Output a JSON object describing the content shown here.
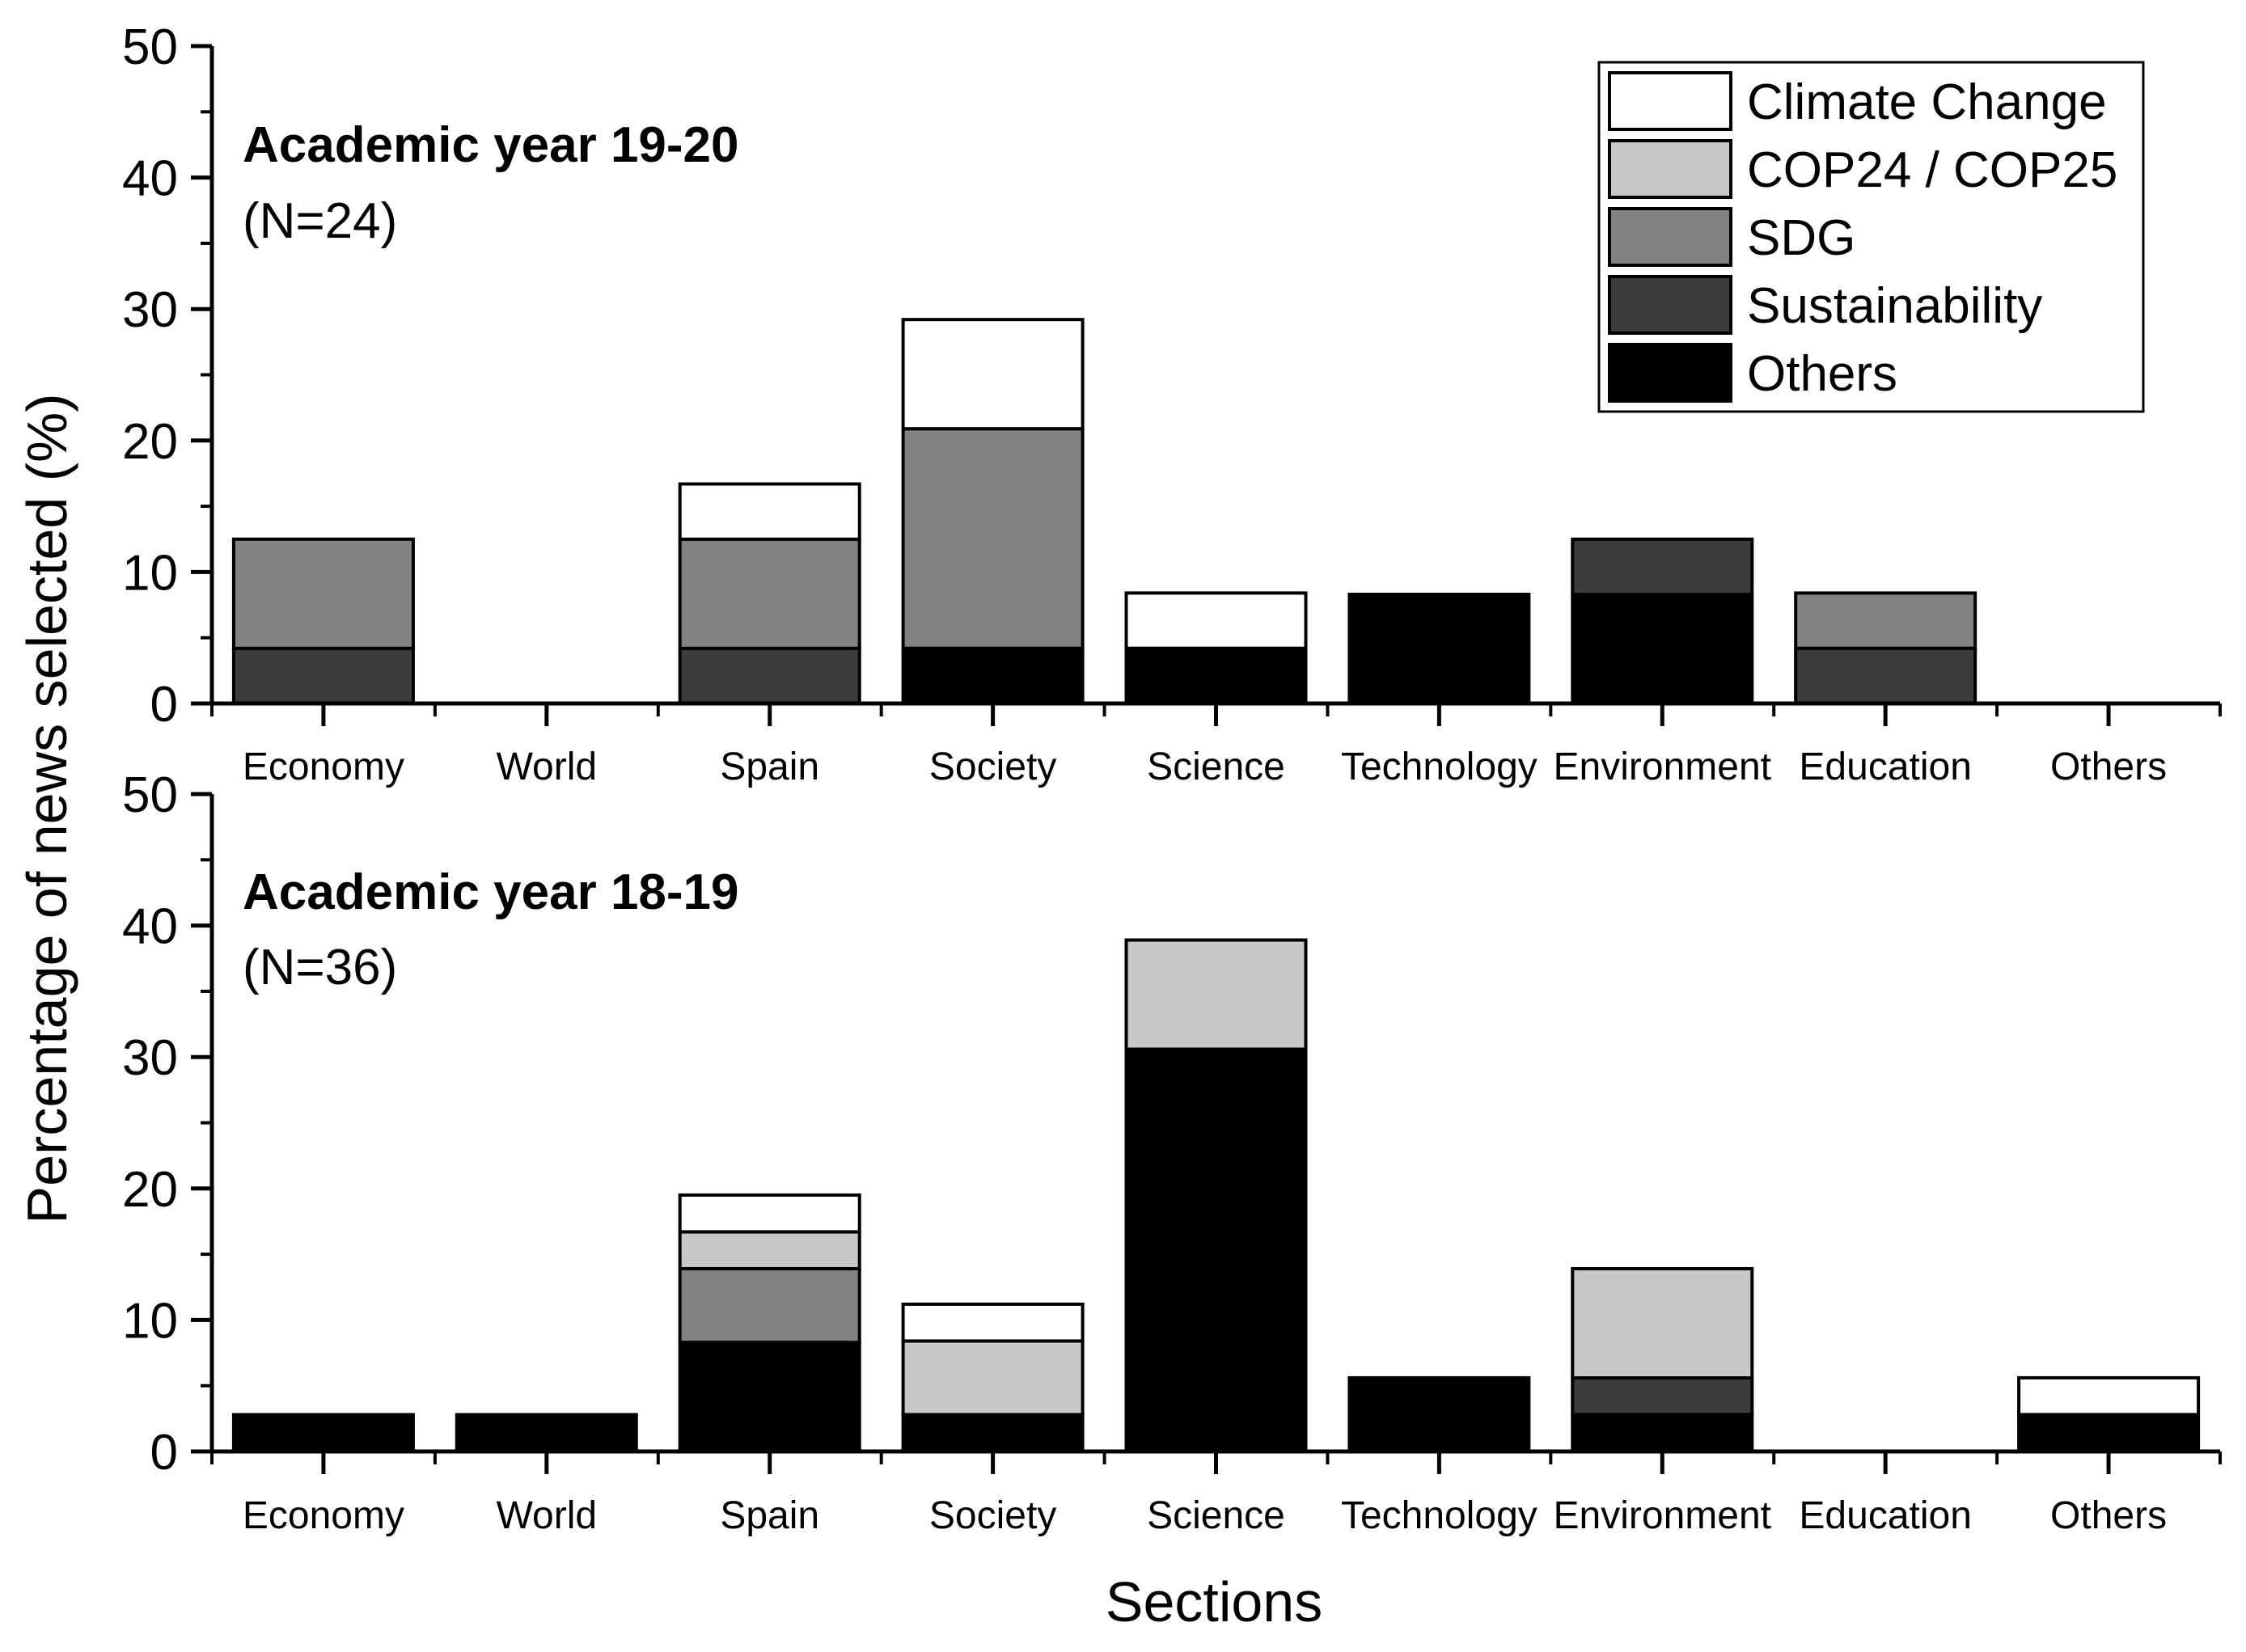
{
  "chart_data": {
    "type": "bar",
    "stacked": true,
    "xlabel": "Sections",
    "ylabel": "Percentage of news selected (%)",
    "ylim": [
      0,
      50
    ],
    "yticks": [
      0,
      10,
      20,
      30,
      40,
      50
    ],
    "legend_position": "top-right",
    "categories": [
      "Economy",
      "World",
      "Spain",
      "Society",
      "Science",
      "Technology",
      "Environment",
      "Education",
      "Others"
    ],
    "series_styles": [
      {
        "name": "Climate Change",
        "color": "#ffffff"
      },
      {
        "name": "COP24 / COP25",
        "color": "#c8c8c8"
      },
      {
        "name": "SDG",
        "color": "#828282"
      },
      {
        "name": "Sustainability",
        "color": "#3c3c3c"
      },
      {
        "name": "Others",
        "color": "#000000"
      }
    ],
    "panels": [
      {
        "title": "Academic year 19-20",
        "subtitle": "(N=24)",
        "series": [
          {
            "name": "Others",
            "values": [
              0,
              0,
              0,
              4.2,
              4.2,
              8.3,
              8.3,
              0,
              0
            ]
          },
          {
            "name": "Sustainability",
            "values": [
              4.2,
              0,
              4.2,
              0,
              0,
              0,
              4.2,
              4.2,
              0
            ]
          },
          {
            "name": "SDG",
            "values": [
              8.3,
              0,
              8.3,
              16.7,
              0,
              0,
              0,
              4.2,
              0
            ]
          },
          {
            "name": "COP24 / COP25",
            "values": [
              0,
              0,
              0,
              0,
              0,
              0,
              0,
              0,
              0
            ]
          },
          {
            "name": "Climate Change",
            "values": [
              0,
              0,
              4.2,
              8.3,
              4.2,
              0,
              0,
              0,
              0
            ]
          }
        ]
      },
      {
        "title": "Academic year 18-19",
        "subtitle": "(N=36)",
        "series": [
          {
            "name": "Others",
            "values": [
              2.8,
              2.8,
              8.3,
              2.8,
              30.6,
              5.6,
              2.8,
              0,
              2.8
            ]
          },
          {
            "name": "Sustainability",
            "values": [
              0,
              0,
              0,
              0,
              0,
              0,
              2.8,
              0,
              0
            ]
          },
          {
            "name": "SDG",
            "values": [
              0,
              0,
              5.6,
              0,
              0,
              0,
              0,
              0,
              0
            ]
          },
          {
            "name": "COP24 / COP25",
            "values": [
              0,
              0,
              2.8,
              5.6,
              8.3,
              0,
              8.3,
              0,
              0
            ]
          },
          {
            "name": "Climate Change",
            "values": [
              0,
              0,
              2.8,
              2.8,
              0,
              0,
              0,
              0,
              2.8
            ]
          }
        ]
      }
    ]
  }
}
